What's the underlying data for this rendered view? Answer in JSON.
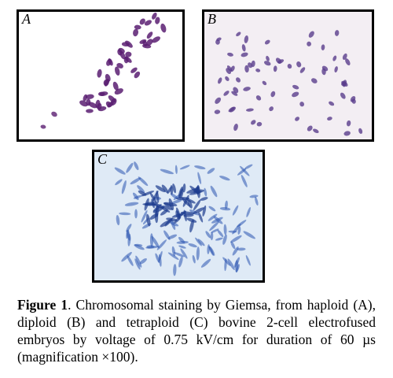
{
  "panels": {
    "a": {
      "letter": "A"
    },
    "b": {
      "letter": "B"
    },
    "c": {
      "letter": "C"
    }
  },
  "colors": {
    "panel_a_chromosome": "#5b1f72",
    "panel_b_chromosome": "#5a3d8c",
    "panel_c_chromosome": "#2a54b0",
    "panel_c_background": "#dfeaf6"
  },
  "caption": {
    "label": "Figure 1",
    "text": ". Chromosomal staining by Giemsa, from haploid (A), diploid (B) and tetraploid (C) bovine 2-cell electrofused embryos by voltage of 0.75 kV/cm for duration of 60 µs (magnification ×100)."
  }
}
